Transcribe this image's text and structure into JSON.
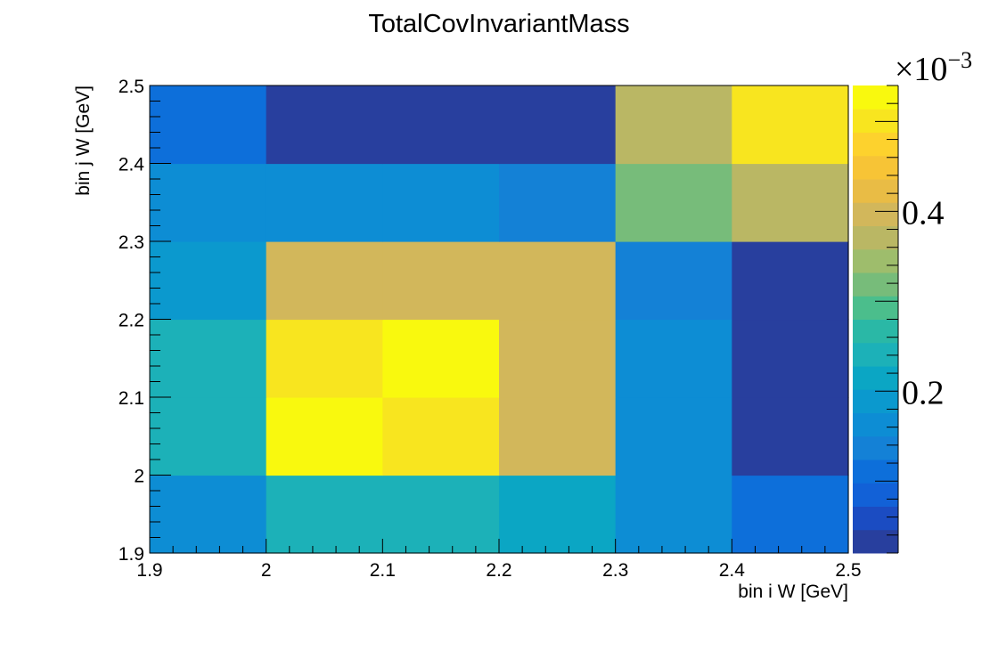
{
  "chart_data": {
    "type": "heatmap",
    "title": "TotalCovInvariantMass",
    "xlabel": "bin i W [GeV]",
    "ylabel": "bin j W [GeV]",
    "x_edges": [
      1.9,
      2.0,
      2.1,
      2.2,
      2.3,
      2.4,
      2.5
    ],
    "y_edges": [
      1.9,
      2.0,
      2.1,
      2.2,
      2.3,
      2.4,
      2.5
    ],
    "xlim": [
      1.9,
      2.5
    ],
    "ylim": [
      1.9,
      2.5
    ],
    "x_ticks": [
      "1.9",
      "2",
      "2.1",
      "2.2",
      "2.3",
      "2.4",
      "2.5"
    ],
    "y_ticks": [
      "1.9",
      "2",
      "2.1",
      "2.2",
      "2.3",
      "2.4",
      "2.5"
    ],
    "zlim": [
      0.02,
      0.54
    ],
    "z_multiplier": "×10",
    "z_exponent": "−3",
    "z_ticks": [
      {
        "value": 0.2,
        "label": "0.2"
      },
      {
        "value": 0.4,
        "label": "0.4"
      }
    ],
    "values_rows_low_to_high_y": [
      [
        0.17,
        0.24,
        0.24,
        0.21,
        0.15,
        0.1
      ],
      [
        0.25,
        0.52,
        0.5,
        0.4,
        0.15,
        0.03
      ],
      [
        0.25,
        0.5,
        0.52,
        0.4,
        0.15,
        0.03
      ],
      [
        0.2,
        0.4,
        0.4,
        0.4,
        0.13,
        0.03
      ],
      [
        0.16,
        0.16,
        0.16,
        0.14,
        0.32,
        0.36
      ],
      [
        0.12,
        0.03,
        0.03,
        0.03,
        0.36,
        0.51
      ]
    ],
    "palette": [
      "#283f9e",
      "#1b4cc2",
      "#1261d7",
      "#0d6fda",
      "#1481d6",
      "#0d8dd4",
      "#0b99ce",
      "#0ba6c4",
      "#1cb1b8",
      "#2ab8a6",
      "#4bbe8c",
      "#77bc7a",
      "#9ebd6c",
      "#bab764",
      "#d2b75b",
      "#e9bc45",
      "#f7c436",
      "#fdd22d",
      "#f8e51f",
      "#f9f90e"
    ],
    "grid": false
  }
}
